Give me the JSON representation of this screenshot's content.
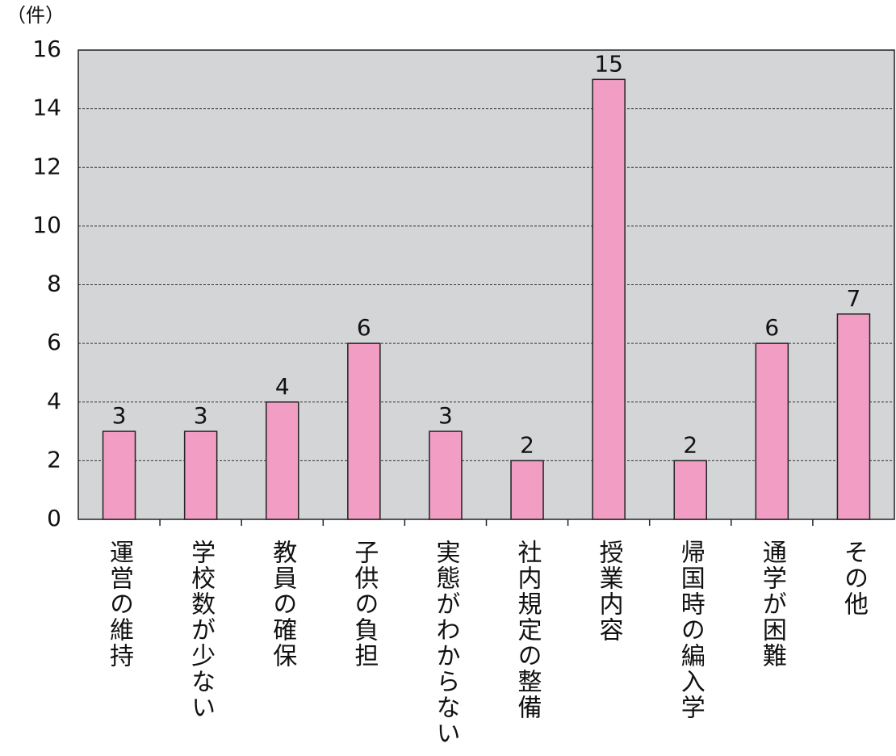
{
  "chart_data": {
    "type": "bar",
    "y_unit": "（件）",
    "categories": [
      "運営の維持",
      "学校数が少ない",
      "教員の確保",
      "子供の負担",
      "実態がわからない",
      "社内規定の整備",
      "授業内容",
      "帰国時の編入学",
      "通学が困難",
      "その他"
    ],
    "values": [
      3,
      3,
      4,
      6,
      3,
      2,
      15,
      2,
      6,
      7
    ],
    "color": "#f29ec4",
    "ylim": [
      0,
      16
    ],
    "yticks": [
      0,
      2,
      4,
      6,
      8,
      10,
      12,
      14,
      16
    ],
    "grid": true
  }
}
